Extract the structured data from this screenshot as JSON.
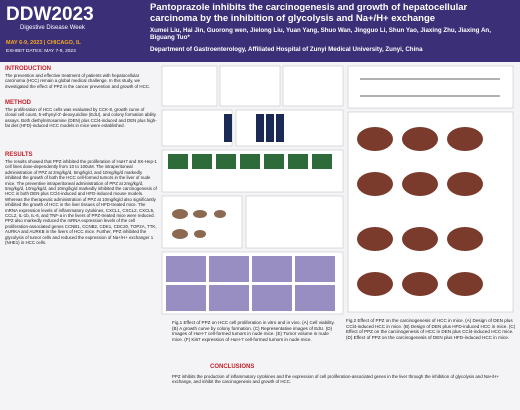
{
  "header": {
    "logo": "DDW2023",
    "logo_sub": "Digestive Disease Week",
    "dates": "MAY 6-9, 2023 | CHICAGO, IL",
    "exhibit": "EXHIBIT DATES: MAY 7-9, 2023",
    "title": "Pantoprazole inhibits the carcinogenesis and growth of hepatocellular carcinoma by the inhibition of glycolysis and Na+/H+ exchange",
    "authors": "Xumei Liu, Hai Jin, Guorong wen, Jielong Liu, Yuan Yang, Shuo Wan, Jingguo Li, Shun Yao, Jiaxing Zhu, Jiaxing An, Biguang Tuo*",
    "affiliation": "Department of Gastroenterology, Affiliated Hospital of Zunyi Medical University, Zunyi, China"
  },
  "sections": {
    "introduction": {
      "heading": "INTRODUCTION",
      "text": "The prevention and effective treatment of patients with hepatocellular carcinoma (HCC) remain a global medical challenge. In this study, we investigated the effect of PPZ in the cancer prevention and growth of HCC."
    },
    "method": {
      "heading": "METHOD",
      "text": "The proliferation of HCC cells was evaluated by CCK-8, growth curve of clonal cell count, 5-ethynyl-2'-deoxyuridine (EdU), and colony formation ability assays. Both diethylnitrosamine (DEN) plus CCl4-induced and DEN plus high-fat diet (HFD)-induced HCC models in mice were established."
    },
    "results": {
      "heading": "RESULTS",
      "text": "The results showed that PPZ inhibited the proliferation of HuH7 and SK-Hep-1 cell lines dose-dependently from 10 to 100uM. The intraperitoneal administration of PPZ at 2mg/kg/d, 5mg/kg/d, and 10mg/kg/d markedly inhibited the growth of both the HCC cell-formed tumors in the liver of nude mice. The preventive intraperitoneal administration of PPZ at 2mg/kg/d, 5mg/kg/d, 10mg/kg/d, and 10mg/kg/d markedly inhibited the carcinogenesis of HCC in both DEN plus CCl4-induced and HFD-induced mouse models. Whereas the therapeutic administration of PPZ at 10mg/kg/d also significantly inhibited the growth of HCC in the liver tissues of HFD-treated mice. The mRNA expression levels of inflammatory cytokines, CXCL1, CXCL2, CXCL5, CCL2, IL-1b, IL-6, and TNF-a in the livers of PPZ-treated mice were reduced. PPZ also markedly reduced the mRNA expression levels of the cell proliferation-associated genes CCNB1, CCNB2, CDK1, CDC20, TOP2A, TTK, AURKA and AURKB in the livers of HCC mice. Further, PPZ inhibited the glycolysis of tumor cells and reduced the expression of Na+/H+ exchanger 1 (NHE1) in HCC cells."
    },
    "conclusions": {
      "heading": "CONCLUSIONS",
      "text": "PPZ inhibits the production of inflammatory cytokines and the expression of cell proliferation-associated genes in the liver through the inhibition of glycolysis and Na+/H+ exchange, and inhibit the carcinogenesis and growth of HCC."
    }
  },
  "figures": {
    "fig1": {
      "caption": "Fig.1 Effect of PPZ on HCC cell proliferation in vitro and in vivo. (A) Cell viability. (B) A growth curve by colony formation. (C) Representative images of EdU. (D) Images of HuH-7 cell-formed tumors in nude mice. (E) Tumor volume in nude mice. (F) Ki67 expression of HuH-7 cell-formed tumors in nude mice."
    },
    "fig2": {
      "caption": "Fig.2 Effect of PPZ on the carcinogenesis of HCC in mice. (A) Design of DEN plus CCl4-induced HCC in mice. (B) Design of DEN plus HFD-induced HCC in mice. (C) Effect of PPZ on the carcinogenesis of HCC in DEN plus CCl4-induced HCC mice. (D) Effect of PPZ on the carcinogenesis of DEN plus HFD-induced HCC in mice."
    }
  }
}
